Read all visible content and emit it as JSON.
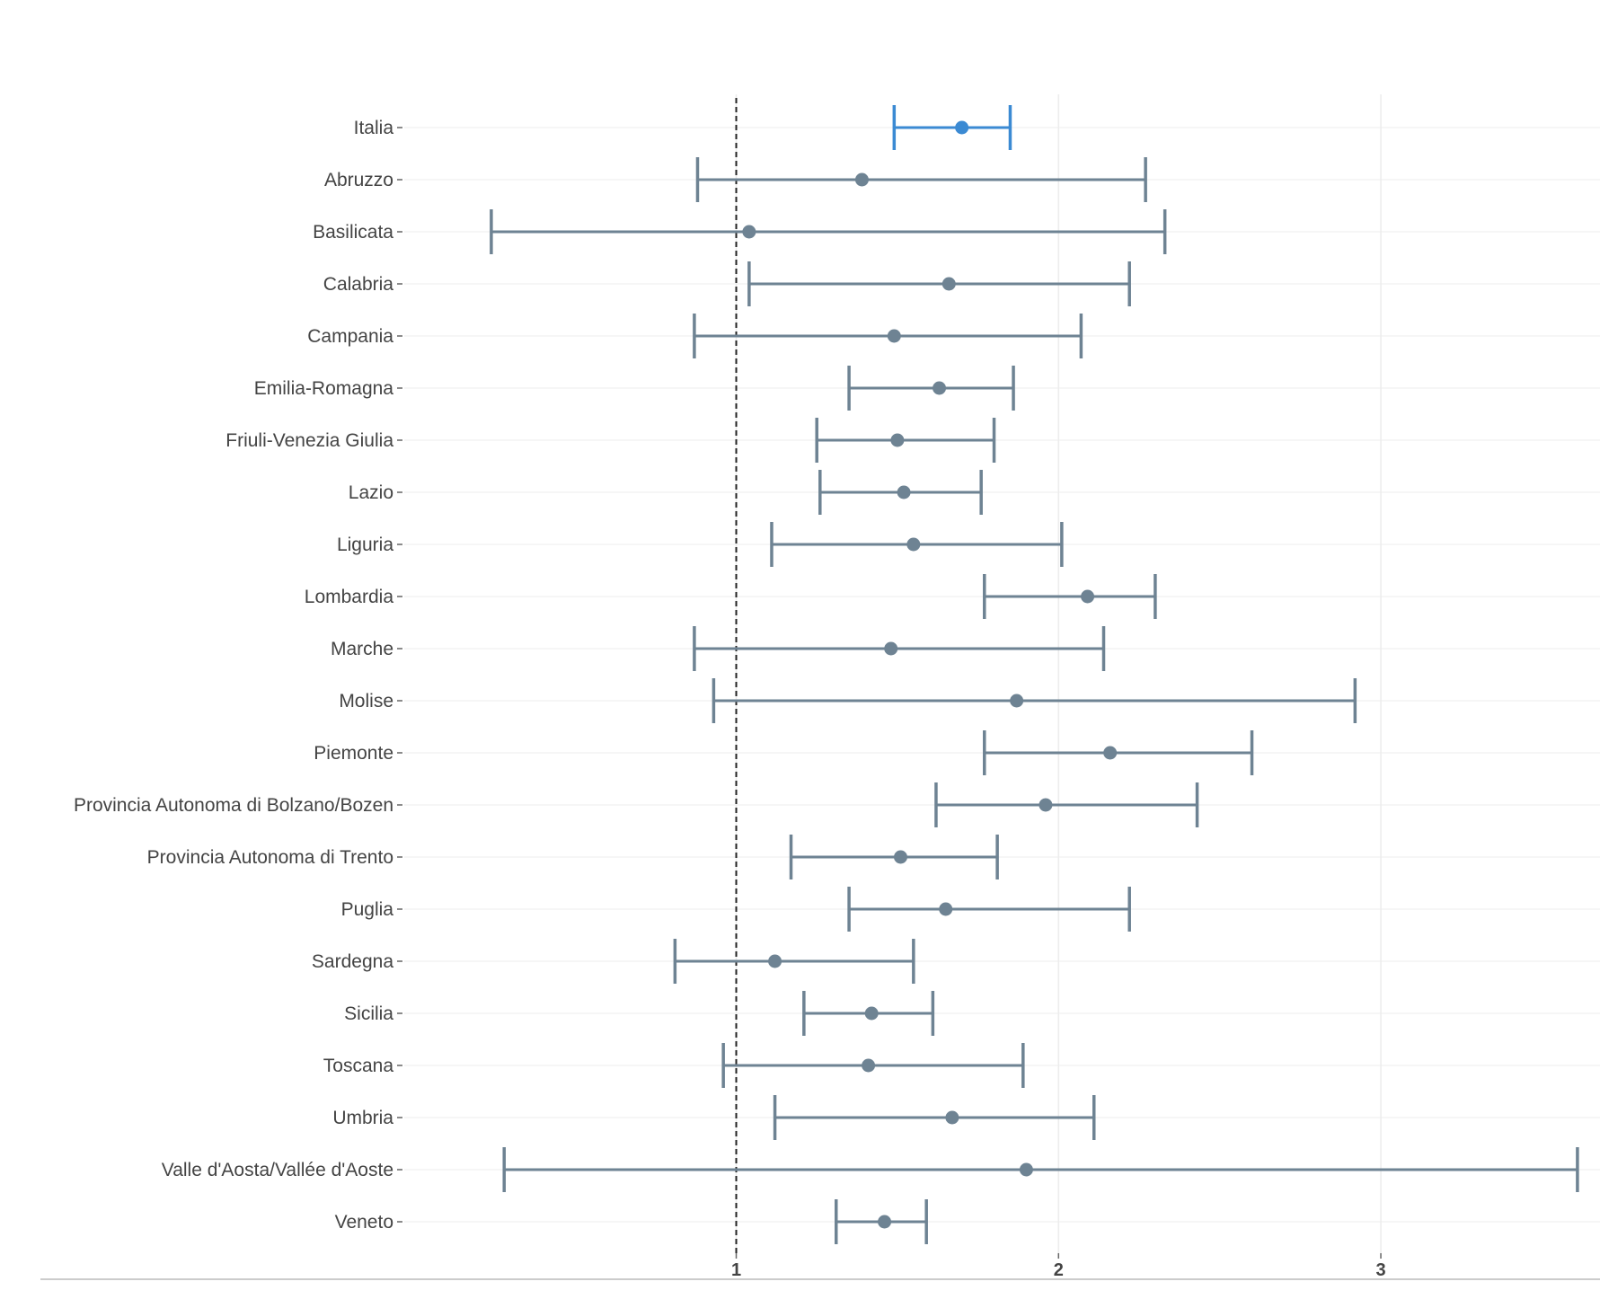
{
  "chart_data": {
    "type": "scatter",
    "variant": "forest-plot",
    "title": "",
    "xlabel": "",
    "ylabel": "",
    "xlim": [
      -0.03,
      3.68
    ],
    "xticks": [
      1,
      2,
      3
    ],
    "reference_line": 1,
    "grid": true,
    "colors": {
      "highlight": "#3b8ad3",
      "default": "#6e8393",
      "reference": "#222222"
    },
    "rows": [
      {
        "label": "Italia",
        "estimate": 1.7,
        "lower": 1.49,
        "upper": 1.85,
        "highlight": true
      },
      {
        "label": "Abruzzo",
        "estimate": 1.39,
        "lower": 0.88,
        "upper": 2.27
      },
      {
        "label": "Basilicata",
        "estimate": 1.04,
        "lower": 0.24,
        "upper": 2.33
      },
      {
        "label": "Calabria",
        "estimate": 1.66,
        "lower": 1.04,
        "upper": 2.22
      },
      {
        "label": "Campania",
        "estimate": 1.49,
        "lower": 0.87,
        "upper": 2.07
      },
      {
        "label": "Emilia-Romagna",
        "estimate": 1.63,
        "lower": 1.35,
        "upper": 1.86
      },
      {
        "label": "Friuli-Venezia Giulia",
        "estimate": 1.5,
        "lower": 1.25,
        "upper": 1.8
      },
      {
        "label": "Lazio",
        "estimate": 1.52,
        "lower": 1.26,
        "upper": 1.76
      },
      {
        "label": "Liguria",
        "estimate": 1.55,
        "lower": 1.11,
        "upper": 2.01
      },
      {
        "label": "Lombardia",
        "estimate": 2.09,
        "lower": 1.77,
        "upper": 2.3
      },
      {
        "label": "Marche",
        "estimate": 1.48,
        "lower": 0.87,
        "upper": 2.14
      },
      {
        "label": "Molise",
        "estimate": 1.87,
        "lower": 0.93,
        "upper": 2.92
      },
      {
        "label": "Piemonte",
        "estimate": 2.16,
        "lower": 1.77,
        "upper": 2.6
      },
      {
        "label": "Provincia Autonoma di Bolzano/Bozen",
        "estimate": 1.96,
        "lower": 1.62,
        "upper": 2.43
      },
      {
        "label": "Provincia Autonoma di Trento",
        "estimate": 1.51,
        "lower": 1.17,
        "upper": 1.81
      },
      {
        "label": "Puglia",
        "estimate": 1.65,
        "lower": 1.35,
        "upper": 2.22
      },
      {
        "label": "Sardegna",
        "estimate": 1.12,
        "lower": 0.81,
        "upper": 1.55
      },
      {
        "label": "Sicilia",
        "estimate": 1.42,
        "lower": 1.21,
        "upper": 1.61
      },
      {
        "label": "Toscana",
        "estimate": 1.41,
        "lower": 0.96,
        "upper": 1.89
      },
      {
        "label": "Umbria",
        "estimate": 1.67,
        "lower": 1.12,
        "upper": 2.11
      },
      {
        "label": "Valle d'Aosta/Vallée d'Aoste",
        "estimate": 1.9,
        "lower": 0.28,
        "upper": 3.61
      },
      {
        "label": "Veneto",
        "estimate": 1.46,
        "lower": 1.31,
        "upper": 1.59
      }
    ]
  }
}
